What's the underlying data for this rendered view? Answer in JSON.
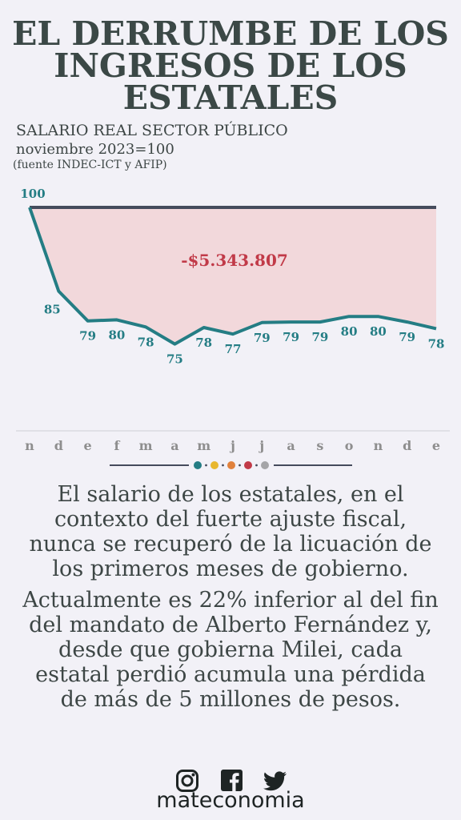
{
  "title_lines": [
    "EL DERRUMBE DE LOS",
    "INGRESOS DE LOS",
    "ESTATALES"
  ],
  "subtitle": "SALARIO REAL SECTOR PÚBLICO",
  "base_note": "noviembre 2023=100",
  "source": "(fuente INDEC-ICT y AFIP)",
  "chart_data": {
    "type": "line",
    "categories": [
      "n",
      "d",
      "e",
      "f",
      "m",
      "a",
      "m",
      "j",
      "j",
      "a",
      "s",
      "o",
      "n",
      "d",
      "e"
    ],
    "series": [
      {
        "values": [
          100,
          85,
          79,
          80,
          78,
          75,
          78,
          77,
          79,
          79,
          79,
          80,
          80,
          79,
          78
        ]
      }
    ],
    "data_labels": [
      "100",
      "85",
      "79",
      "80",
      "78",
      "75",
      "78",
      "77",
      "79",
      "79",
      "79",
      "80",
      "80",
      "79",
      "78"
    ],
    "raw_values": [
      100,
      84.8,
      79.4,
      79.6,
      78.3,
      75.2,
      78.2,
      77,
      79.1,
      79.2,
      79.2,
      80.2,
      80.2,
      79.2,
      78
    ],
    "baseline": 100,
    "annotation": "-$5.343.807",
    "ylim": [
      60,
      100
    ],
    "colors": {
      "line": "#247d84",
      "baseline": "#454b5c",
      "fill": "#f2d8db",
      "annotation": "#c13a48",
      "ticks": "#8e8e8e"
    }
  },
  "divider_dot_colors": [
    "#247d84",
    "#e8b72e",
    "#e0813c",
    "#c13a48",
    "#a5a5a8"
  ],
  "paragraph1": "El salario de los estatales, en el contexto del fuerte ajuste fiscal, nunca se recuperó de la licuación de los primeros meses de gobierno.",
  "paragraph2": "Actualmente es 22% inferior al del fin del mandato de Alberto Fernández y, desde que gobierna Milei, cada estatal perdió acumula una pérdida de más de 5 millones de pesos.",
  "social_icons": [
    "instagram-icon",
    "facebook-icon",
    "twitter-icon"
  ],
  "brand": "mateconomia"
}
